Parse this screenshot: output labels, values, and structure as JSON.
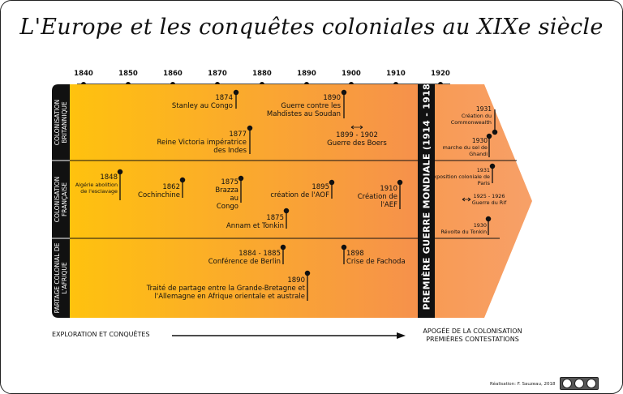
{
  "title": "L'Europe et les conquêtes coloniales au XIXe siècle",
  "timeline": {
    "years": [
      "1840",
      "1850",
      "1860",
      "1870",
      "1880",
      "1890",
      "1900",
      "1910",
      "1920"
    ]
  },
  "rows": {
    "british": "COLONISATION BRITANNIQUE",
    "french": "COLONISATION FRANÇAISE",
    "partage": "PARTAGE COLONIAL DE L'AFRIQUE"
  },
  "ww1": "PREMIÈRE GUERRE MONDIALE (1914 - 1918)",
  "events": {
    "stanley": {
      "year": "1874",
      "text": "Stanley au Congo"
    },
    "mahdistes": {
      "year": "1890",
      "text": "Guerre contre les Mahdistes au Soudan"
    },
    "victoria": {
      "year": "1877",
      "text": "Reine Victoria impératrice des Indes"
    },
    "boers": {
      "year": "1899 - 1902",
      "text": "Guerre des Boers"
    },
    "commonwealth": {
      "year": "1931",
      "text": "Création du Commonwealth"
    },
    "ghandi": {
      "year": "1930",
      "text": "marche du sel de Ghandi"
    },
    "algerie": {
      "year": "1848",
      "text": "Algérie abolition de l'esclavage"
    },
    "cochinchine": {
      "year": "1862",
      "text": "Cochinchine"
    },
    "brazza": {
      "year": "1875",
      "text": "Brazza au Congo"
    },
    "aof": {
      "year": "1895",
      "text": "création de l'AOF"
    },
    "aef": {
      "year": "1910",
      "text": "Création de l'AEF"
    },
    "annam": {
      "year": "1875",
      "text": "Annam et Tonkin"
    },
    "expo": {
      "year": "1931",
      "text": "Exposition coloniale de Paris"
    },
    "rif": {
      "year": "1925 - 1926",
      "text": "Guerre du Rif"
    },
    "tonkin": {
      "year": "1930",
      "text": "Révolte du Tonkin"
    },
    "berlin": {
      "year": "1884 - 1885",
      "text": "Conférence de Berlin"
    },
    "fachoda": {
      "year": "1898",
      "text": "Crise de Fachoda"
    },
    "traite": {
      "year": "1890",
      "text": "Traité de partage entre la Grande-Bretagne et l'Allemagne en Afrique orientale et australe"
    }
  },
  "bottom": {
    "left": "EXPLORATION ET CONQUÊTES",
    "right": "APOGÉE DE LA COLONISATION PREMIÈRES CONTESTATIONS"
  },
  "credit": "Réalisation: F. Sauzeau, 2018",
  "colors": {
    "grad_start": "#ffc20e",
    "grad_end": "#f79a5a",
    "band": "#111111"
  }
}
